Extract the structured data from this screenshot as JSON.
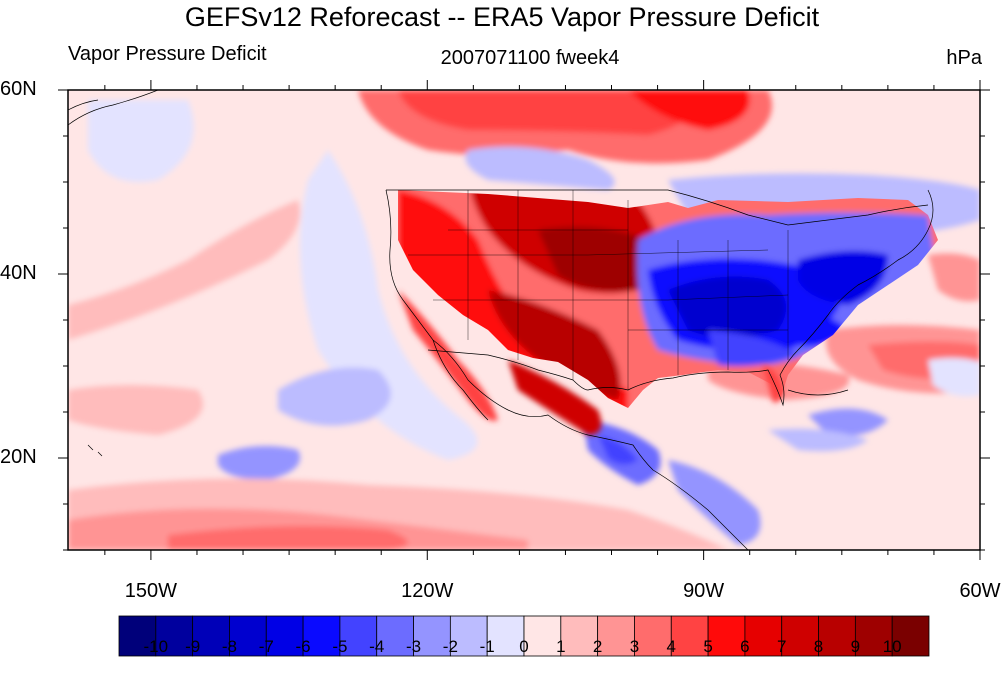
{
  "title": "GEFSv12 Reforecast -- ERA5 Vapor Pressure Deficit",
  "left_label": "Vapor Pressure Deficit",
  "center_label": "2007071100 fweek4",
  "right_label": "hPa",
  "lat_labels": [
    {
      "text": "60N",
      "lat": 60
    },
    {
      "text": "40N",
      "lat": 40
    },
    {
      "text": "20N",
      "lat": 20
    }
  ],
  "lon_labels": [
    {
      "text": "150W",
      "lon": -150
    },
    {
      "text": "120W",
      "lon": -120
    },
    {
      "text": "90W",
      "lon": -90
    },
    {
      "text": "60W",
      "lon": -60
    }
  ],
  "map_extent": {
    "lon_min": -159,
    "lon_max": -60,
    "lat_min": 10,
    "lat_max": 60
  },
  "colorbar": {
    "labels": [
      "-10",
      "-9",
      "-8",
      "-7",
      "-6",
      "-5",
      "-4",
      "-3",
      "-2",
      "-1",
      "0",
      "1",
      "2",
      "3",
      "4",
      "5",
      "6",
      "7",
      "8",
      "9",
      "10"
    ],
    "colors": [
      "#00007a",
      "#00009e",
      "#0000b8",
      "#0000cf",
      "#0000e6",
      "#0a0aff",
      "#4343ff",
      "#6c6cff",
      "#9494ff",
      "#bcbcff",
      "#e3e3ff",
      "#ffe6e6",
      "#ffbcbc",
      "#ff9494",
      "#ff6c6c",
      "#ff4343",
      "#ff0a0a",
      "#e60000",
      "#cf0000",
      "#b80000",
      "#9e0000",
      "#7a0000"
    ]
  }
}
